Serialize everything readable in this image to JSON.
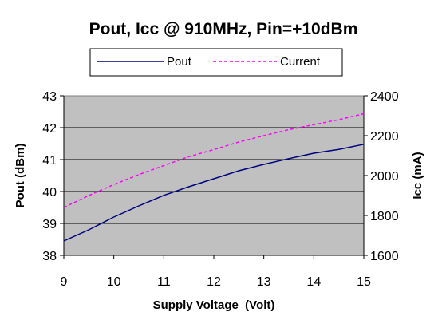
{
  "chart_data": {
    "type": "line",
    "title": "Pout, Icc @ 910MHz, Pin=+10dBm",
    "xlabel": "Supply Voltage  (Volt)",
    "ylabel": "Pout (dBm)",
    "y2label": "Icc (mA)",
    "xlim": [
      9,
      15
    ],
    "ylim": [
      38,
      43
    ],
    "y2lim": [
      1600,
      2400
    ],
    "x_ticks": [
      "9",
      "10",
      "11",
      "12",
      "13",
      "14",
      "15"
    ],
    "y_ticks": [
      "38",
      "39",
      "40",
      "41",
      "42",
      "43"
    ],
    "y2_ticks": [
      "1600",
      "1800",
      "2000",
      "2200",
      "2400"
    ],
    "grid": "horizontal",
    "legend_position": "top",
    "plot_background": "#c0c0c0",
    "series": [
      {
        "name": "Pout",
        "axis": "left",
        "color": "#000080",
        "style": "solid",
        "x": [
          9,
          9.5,
          10,
          10.5,
          11,
          11.5,
          12,
          12.5,
          13,
          13.5,
          14,
          14.5,
          15
        ],
        "values": [
          38.45,
          38.8,
          39.2,
          39.55,
          39.88,
          40.15,
          40.4,
          40.65,
          40.85,
          41.03,
          41.2,
          41.32,
          41.48
        ]
      },
      {
        "name": "Current",
        "axis": "right",
        "color": "#ff00ff",
        "style": "dashed",
        "x": [
          9,
          9.5,
          10,
          10.5,
          11,
          11.5,
          12,
          12.5,
          13,
          13.5,
          14,
          14.5,
          15
        ],
        "values": [
          1840,
          1900,
          1955,
          2005,
          2050,
          2095,
          2130,
          2168,
          2200,
          2230,
          2255,
          2280,
          2310
        ]
      }
    ]
  }
}
